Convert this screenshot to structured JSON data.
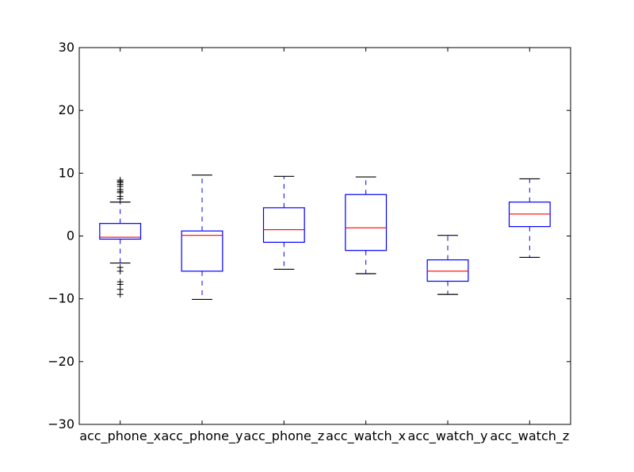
{
  "chart_data": {
    "type": "box",
    "categories": [
      "acc_phone_x",
      "acc_phone_y",
      "acc_phone_z",
      "acc_watch_x",
      "acc_watch_y",
      "acc_watch_z"
    ],
    "ylim": [
      -30,
      30
    ],
    "yticks": [
      -30,
      -20,
      -10,
      0,
      10,
      20,
      30
    ],
    "ytick_labels": [
      "−30",
      "−20",
      "−10",
      "0",
      "10",
      "20",
      "30"
    ],
    "grid": false,
    "boxes": [
      {
        "name": "acc_phone_x",
        "whisker_low": -4.3,
        "q1": -0.5,
        "median": -0.2,
        "q3": 2.0,
        "whisker_high": 5.4,
        "outliers": [
          5.9,
          6.3,
          6.9,
          7.1,
          7.4,
          7.9,
          8.2,
          8.5,
          8.7,
          8.9,
          -5.0,
          -5.6,
          -7.3,
          -7.7,
          -8.5,
          -9.3
        ]
      },
      {
        "name": "acc_phone_y",
        "whisker_low": -10.1,
        "q1": -5.6,
        "median": 0.1,
        "q3": 0.8,
        "whisker_high": 9.7,
        "outliers": []
      },
      {
        "name": "acc_phone_z",
        "whisker_low": -5.3,
        "q1": -1.0,
        "median": 1.0,
        "q3": 4.5,
        "whisker_high": 9.5,
        "outliers": []
      },
      {
        "name": "acc_watch_x",
        "whisker_low": -6.0,
        "q1": -2.3,
        "median": 1.3,
        "q3": 6.6,
        "whisker_high": 9.4,
        "outliers": []
      },
      {
        "name": "acc_watch_y",
        "whisker_low": -9.3,
        "q1": -7.2,
        "median": -5.6,
        "q3": -3.8,
        "whisker_high": 0.1,
        "outliers": []
      },
      {
        "name": "acc_watch_z",
        "whisker_low": -3.4,
        "q1": 1.5,
        "median": 3.5,
        "q3": 5.4,
        "whisker_high": 9.1,
        "outliers": []
      }
    ],
    "colors": {
      "box": "#0000ff",
      "median": "#ff0000",
      "whisker": "#0000ff",
      "cap": "#000000",
      "flier": "#000000",
      "axes": "#000000"
    }
  }
}
